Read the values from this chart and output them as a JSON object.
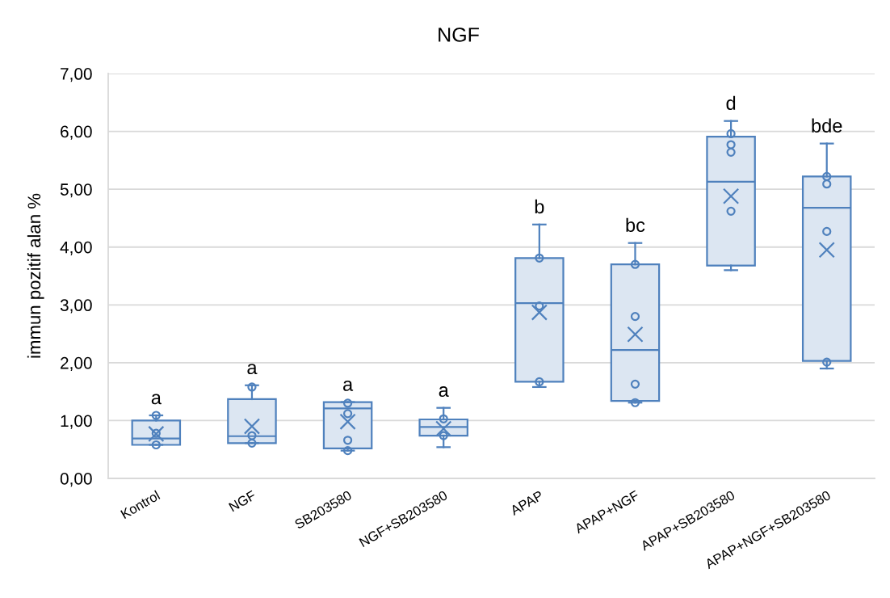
{
  "chart_data": {
    "type": "box",
    "title": "NGF",
    "ylabel": "immun pozitif alan %",
    "categories": [
      "Kontrol",
      "NGF",
      "SB203580",
      "NGF+SB203580",
      "APAP",
      "APAP+NGF",
      "APAP+SB203580",
      "APAP+NGF+SB203580"
    ],
    "ylim": [
      0,
      7
    ],
    "yticks": [
      {
        "value": 0,
        "label": "0,00"
      },
      {
        "value": 1,
        "label": "1,00"
      },
      {
        "value": 2,
        "label": "2,00"
      },
      {
        "value": 3,
        "label": "3,00"
      },
      {
        "value": 4,
        "label": "4,00"
      },
      {
        "value": 5,
        "label": "5,00"
      },
      {
        "value": 6,
        "label": "6,00"
      },
      {
        "value": 7,
        "label": "7,00"
      }
    ],
    "grid": "y",
    "series": [
      {
        "color": "#4f81bd",
        "boxes": [
          {
            "low": 0.58,
            "q1": 0.58,
            "median": 0.69,
            "q3": 1.0,
            "high": 1.09,
            "mean": 0.77
          },
          {
            "low": 0.61,
            "q1": 0.61,
            "median": 0.73,
            "q3": 1.37,
            "high": 1.61,
            "mean": 0.9
          },
          {
            "low": 0.48,
            "q1": 0.52,
            "median": 1.21,
            "q3": 1.32,
            "high": 1.32,
            "mean": 0.98
          },
          {
            "low": 0.54,
            "q1": 0.74,
            "median": 0.89,
            "q3": 1.02,
            "high": 1.22,
            "mean": 0.86
          },
          {
            "low": 1.58,
            "q1": 1.67,
            "median": 3.03,
            "q3": 3.81,
            "high": 4.39,
            "mean": 2.87
          },
          {
            "low": 1.31,
            "q1": 1.34,
            "median": 2.22,
            "q3": 3.7,
            "high": 4.07,
            "mean": 2.49
          },
          {
            "low": 3.6,
            "q1": 3.68,
            "median": 5.13,
            "q3": 5.91,
            "high": 6.18,
            "mean": 4.88
          },
          {
            "low": 1.9,
            "q1": 2.03,
            "median": 4.68,
            "q3": 5.22,
            "high": 5.79,
            "mean": 3.95
          }
        ]
      },
      {
        "type": "scatter",
        "color": "#4f81bd",
        "marker": "circle",
        "x": [
          "Kontrol",
          "Kontrol",
          "Kontrol",
          "NGF",
          "NGF",
          "NGF",
          "SB203580",
          "SB203580",
          "SB203580",
          "SB203580",
          "NGF+SB203580",
          "NGF+SB203580",
          "APAP",
          "APAP",
          "APAP",
          "APAP+NGF",
          "APAP+NGF",
          "APAP+NGF",
          "APAP+NGF",
          "APAP+SB203580",
          "APAP+SB203580",
          "APAP+SB203580",
          "APAP+SB203580",
          "APAP+NGF+SB203580",
          "APAP+NGF+SB203580",
          "APAP+NGF+SB203580",
          "APAP+NGF+SB203580"
        ],
        "values": [
          1.09,
          0.78,
          0.58,
          1.58,
          0.74,
          0.61,
          1.3,
          1.12,
          0.66,
          0.48,
          1.03,
          0.74,
          3.81,
          2.98,
          1.67,
          3.7,
          2.8,
          1.63,
          1.31,
          5.96,
          5.77,
          5.64,
          4.62,
          5.22,
          5.09,
          4.27,
          2.01
        ]
      }
    ],
    "annotations": [
      "a",
      "a",
      "a",
      "a",
      "b",
      "bc",
      "d",
      "bde"
    ]
  }
}
